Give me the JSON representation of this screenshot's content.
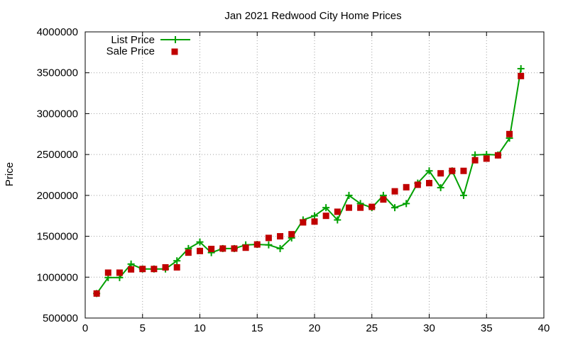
{
  "chart_data": {
    "type": "line",
    "title": "Jan 2021 Redwood City Home Prices",
    "xlabel": "",
    "ylabel": "Price",
    "xlim": [
      0,
      40
    ],
    "ylim": [
      500000,
      4000000
    ],
    "x_ticks": [
      0,
      5,
      10,
      15,
      20,
      25,
      30,
      35,
      40
    ],
    "y_ticks": [
      500000,
      1000000,
      1500000,
      2000000,
      2500000,
      3000000,
      3500000,
      4000000
    ],
    "grid": true,
    "legend": "top-left",
    "series": [
      {
        "name": "List Price",
        "style": "lines+points",
        "marker": "plus",
        "color": "#00a000",
        "x": [
          1,
          2,
          3,
          4,
          5,
          6,
          7,
          8,
          9,
          10,
          11,
          12,
          13,
          14,
          15,
          16,
          17,
          18,
          19,
          20,
          21,
          22,
          23,
          24,
          25,
          26,
          27,
          28,
          29,
          30,
          31,
          32,
          33,
          34,
          35,
          36,
          37,
          38
        ],
        "y": [
          800000,
          995000,
          995000,
          1160000,
          1100000,
          1100000,
          1100000,
          1200000,
          1350000,
          1430000,
          1300000,
          1350000,
          1350000,
          1395000,
          1400000,
          1395000,
          1350000,
          1480000,
          1700000,
          1750000,
          1850000,
          1700000,
          2000000,
          1900000,
          1850000,
          2000000,
          1850000,
          1900000,
          2150000,
          2300000,
          2095000,
          2300000,
          2000000,
          2495000,
          2500000,
          2495000,
          2700000,
          3550000
        ]
      },
      {
        "name": "Sale Price",
        "style": "points",
        "marker": "square",
        "color": "#c00000",
        "x": [
          1,
          2,
          3,
          4,
          5,
          6,
          7,
          8,
          9,
          10,
          11,
          12,
          13,
          14,
          15,
          16,
          17,
          18,
          19,
          20,
          21,
          22,
          23,
          24,
          25,
          26,
          27,
          28,
          29,
          30,
          31,
          32,
          33,
          34,
          35,
          36,
          37,
          38
        ],
        "y": [
          800000,
          1055000,
          1055000,
          1095000,
          1100000,
          1100000,
          1120000,
          1120000,
          1300000,
          1320000,
          1345000,
          1350000,
          1350000,
          1360000,
          1400000,
          1480000,
          1500000,
          1525000,
          1670000,
          1680000,
          1750000,
          1800000,
          1850000,
          1850000,
          1860000,
          1950000,
          2050000,
          2100000,
          2130000,
          2150000,
          2270000,
          2300000,
          2300000,
          2430000,
          2450000,
          2490000,
          2750000,
          3460000
        ]
      }
    ]
  }
}
